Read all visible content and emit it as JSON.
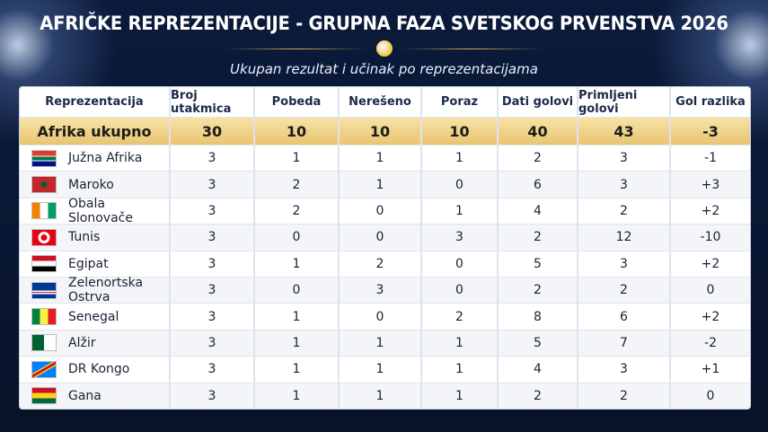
{
  "header": {
    "title": "AFRIČKE REPREZENTACIJE - GRUPNA FAZA SVETSKOG PRVENSTVA 2026",
    "subtitle": "Ukupan rezultat i učinak po reprezentacijama"
  },
  "table": {
    "columns": [
      "Reprezentacija",
      "Broj utakmica",
      "Pobeda",
      "Nerešeno",
      "Poraz",
      "Dati golovi",
      "Primljeni golovi",
      "Gol razlika"
    ],
    "total": [
      "Afrika ukupno",
      30,
      10,
      10,
      10,
      40,
      43,
      -3
    ],
    "rows": [
      [
        "Južna Afrika",
        3,
        1,
        1,
        1,
        2,
        3,
        -1
      ],
      [
        "Maroko",
        3,
        2,
        1,
        0,
        6,
        3,
        "+3"
      ],
      [
        "Obala Slonovače",
        3,
        2,
        0,
        1,
        4,
        2,
        "+2"
      ],
      [
        "Tunis",
        3,
        0,
        0,
        3,
        2,
        12,
        -10
      ],
      [
        "Egipat",
        3,
        1,
        2,
        0,
        5,
        3,
        "+2"
      ],
      [
        "Zelenortska Ostrva",
        3,
        0,
        3,
        0,
        2,
        2,
        0
      ],
      [
        "Senegal",
        3,
        1,
        0,
        2,
        8,
        6,
        "+2"
      ],
      [
        "Alžir",
        3,
        1,
        1,
        1,
        5,
        7,
        -2
      ],
      [
        "DR Kongo",
        3,
        1,
        1,
        1,
        4,
        3,
        "+1"
      ],
      [
        "Gana",
        3,
        1,
        1,
        1,
        2,
        2,
        0
      ]
    ]
  }
}
